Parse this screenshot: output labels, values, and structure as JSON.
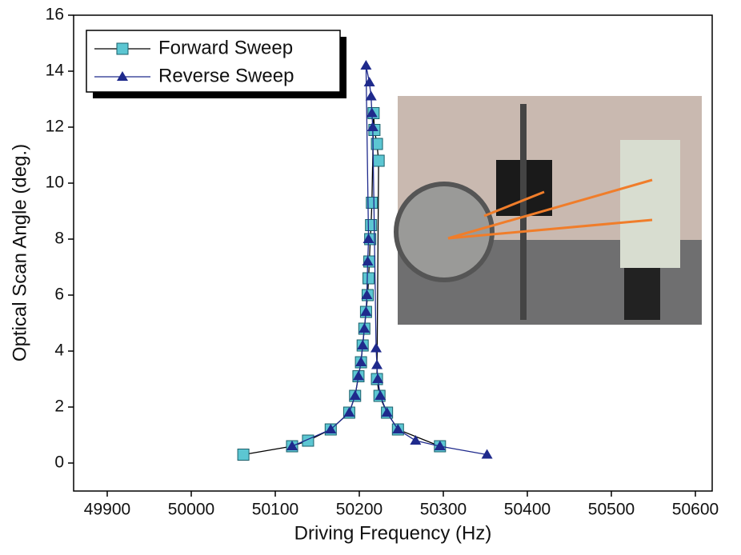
{
  "chart_data": {
    "type": "line",
    "xlabel": "Driving Frequency (Hz)",
    "ylabel": "Optical Scan Angle (deg.)",
    "xlim": [
      49860,
      50620
    ],
    "xticks": [
      49900,
      50000,
      50100,
      50200,
      50300,
      50400,
      50500,
      50600
    ],
    "ylim": [
      -1,
      16
    ],
    "yticks": [
      0,
      2,
      4,
      6,
      8,
      10,
      12,
      14,
      16
    ],
    "legend": "upper left",
    "series": [
      {
        "name": "Forward Sweep",
        "color": "#000000",
        "marker": "square",
        "marker_color": "#5cc6d2",
        "x": [
          50062,
          50120,
          50139,
          50166,
          50188,
          50195,
          50199,
          50202,
          50204,
          50206,
          50208,
          50210,
          50211,
          50212,
          50213,
          50214,
          50215,
          50217,
          50218,
          50221,
          50223,
          50221,
          50224,
          50233,
          50246,
          50296
        ],
        "values": [
          0.3,
          0.6,
          0.8,
          1.2,
          1.8,
          2.4,
          3.1,
          3.6,
          4.2,
          4.8,
          5.4,
          6.0,
          6.6,
          7.2,
          8.0,
          8.5,
          9.3,
          12.5,
          11.9,
          11.4,
          10.8,
          3.0,
          2.4,
          1.8,
          1.2,
          0.6
        ]
      },
      {
        "name": "Reverse Sweep",
        "color": "#1f2a8c",
        "marker": "triangle",
        "marker_color": "#1f2a8c",
        "x": [
          50352,
          50296,
          50267,
          50246,
          50233,
          50225,
          50222,
          50221,
          50220,
          50216,
          50215,
          50214,
          50212,
          50208,
          50211,
          50210,
          50209,
          50208,
          50206,
          50204,
          50202,
          50199,
          50195,
          50188,
          50166,
          50120
        ],
        "values": [
          0.3,
          0.6,
          0.8,
          1.2,
          1.8,
          2.4,
          3.0,
          3.5,
          4.1,
          12.0,
          12.5,
          13.1,
          13.6,
          14.2,
          8.0,
          7.2,
          6.0,
          5.4,
          4.8,
          4.2,
          3.6,
          3.1,
          2.4,
          1.8,
          1.2,
          0.6
        ]
      }
    ]
  }
}
